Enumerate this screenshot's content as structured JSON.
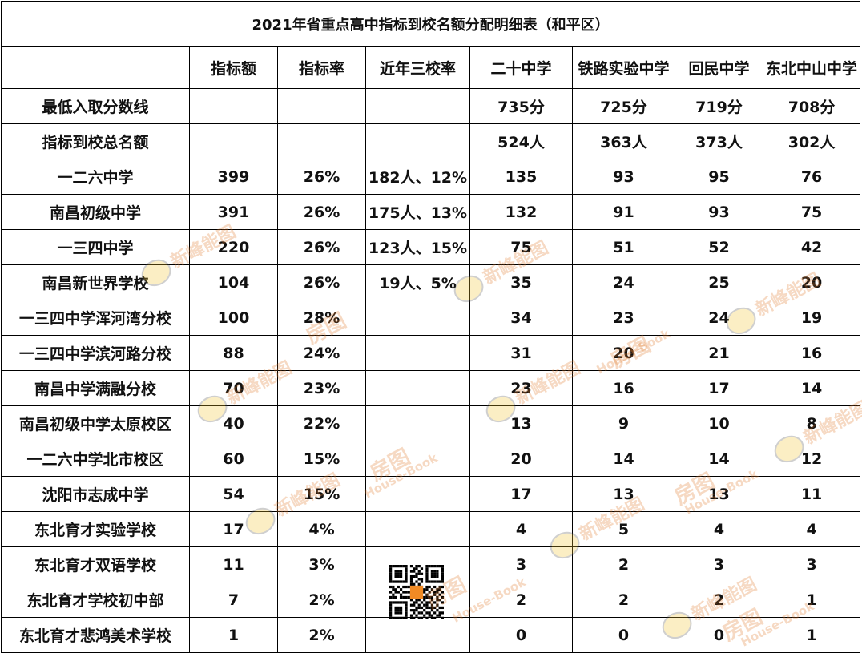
{
  "title": "2021年省重点高中指标到校名额分配明细表（和平区）",
  "header": [
    "",
    "指标额",
    "指标率",
    "近年三校率",
    "二十中学",
    "铁路实验中学",
    "回民中学",
    "东北中山中学"
  ],
  "summary_rows": [
    {
      "label": "最低入取分数线",
      "cells": [
        "",
        "",
        "",
        "735分",
        "725分",
        "719分",
        "708分"
      ]
    },
    {
      "label": "指标到校总名额",
      "cells": [
        "",
        "",
        "",
        "524人",
        "363人",
        "373人",
        "302人"
      ]
    }
  ],
  "rows": [
    {
      "school": "一二六中学",
      "quota": "399",
      "rate": "26%",
      "recent": "182人、12%",
      "s1": "135",
      "s2": "93",
      "s3": "95",
      "s4": "76",
      "highlight": true
    },
    {
      "school": "南昌初级中学",
      "quota": "391",
      "rate": "26%",
      "recent": "175人、13%",
      "s1": "132",
      "s2": "91",
      "s3": "93",
      "s4": "75",
      "highlight": true
    },
    {
      "school": "一三四中学",
      "quota": "220",
      "rate": "26%",
      "recent": "123人、15%",
      "s1": "75",
      "s2": "51",
      "s3": "52",
      "s4": "42",
      "highlight": true
    },
    {
      "school": "南昌新世界学校",
      "quota": "104",
      "rate": "26%",
      "recent": "19人、5%",
      "s1": "35",
      "s2": "24",
      "s3": "25",
      "s4": "20",
      "highlight": false
    },
    {
      "school": "一三四中学浑河湾分校",
      "quota": "100",
      "rate": "28%",
      "recent": "",
      "s1": "34",
      "s2": "23",
      "s3": "24",
      "s4": "19",
      "highlight": false
    },
    {
      "school": "一三四中学滨河路分校",
      "quota": "88",
      "rate": "24%",
      "recent": "",
      "s1": "31",
      "s2": "20",
      "s3": "21",
      "s4": "16",
      "highlight": false
    },
    {
      "school": "南昌中学满融分校",
      "quota": "70",
      "rate": "23%",
      "recent": "",
      "s1": "23",
      "s2": "16",
      "s3": "17",
      "s4": "14",
      "highlight": false
    },
    {
      "school": "南昌初级中学太原校区",
      "quota": "40",
      "rate": "22%",
      "recent": "",
      "s1": "13",
      "s2": "9",
      "s3": "10",
      "s4": "8",
      "highlight": false
    },
    {
      "school": "一二六中学北市校区",
      "quota": "60",
      "rate": "15%",
      "recent": "",
      "s1": "20",
      "s2": "14",
      "s3": "14",
      "s4": "12",
      "highlight": false
    },
    {
      "school": "沈阳市志成中学",
      "quota": "54",
      "rate": "15%",
      "recent": "",
      "s1": "17",
      "s2": "13",
      "s3": "13",
      "s4": "11",
      "highlight": false
    },
    {
      "school": "东北育才实验学校",
      "quota": "17",
      "rate": "4%",
      "recent": "",
      "s1": "4",
      "s2": "5",
      "s3": "4",
      "s4": "4",
      "highlight": false
    },
    {
      "school": "东北育才双语学校",
      "quota": "11",
      "rate": "3%",
      "recent": "",
      "s1": "3",
      "s2": "2",
      "s3": "3",
      "s4": "3",
      "highlight": false
    },
    {
      "school": "东北育才学校初中部",
      "quota": "7",
      "rate": "2%",
      "recent": "",
      "s1": "2",
      "s2": "2",
      "s3": "2",
      "s4": "1",
      "highlight": false
    },
    {
      "school": "东北育才悲鸿美术学校",
      "quota": "1",
      "rate": "2%",
      "recent": "",
      "s1": "0",
      "s2": "0",
      "s3": "0",
      "s4": "1",
      "highlight": false
    }
  ],
  "watermark": {
    "brand": "新峰能图",
    "mark": "房图",
    "site": "House-Book"
  },
  "colors": {
    "highlight": "#c00000",
    "text": "#111111",
    "watermark": "#e07a2a"
  }
}
